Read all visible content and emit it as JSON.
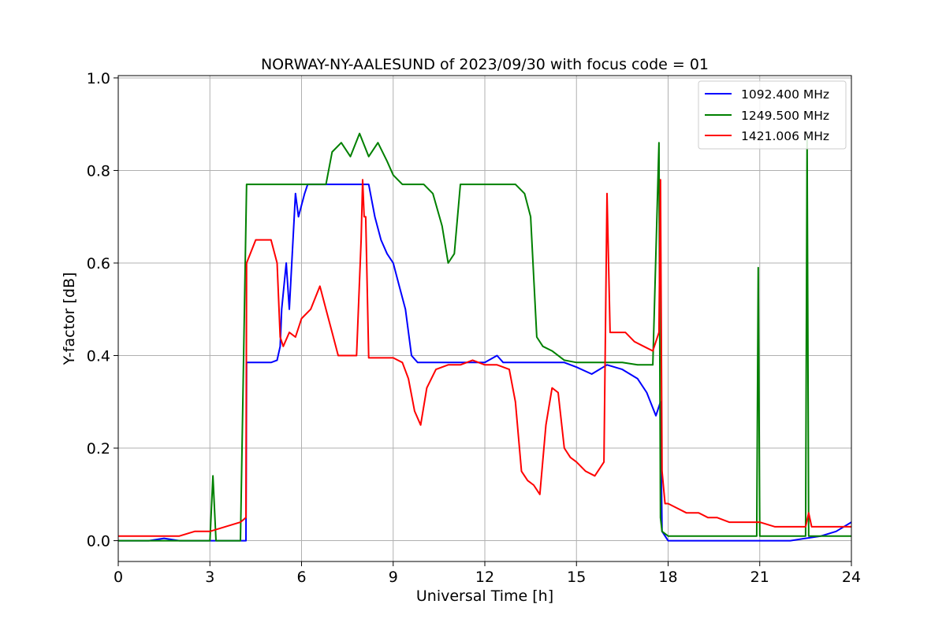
{
  "chart_data": {
    "type": "line",
    "title": "NORWAY-NY-AALESUND of 2023/09/30 with focus code = 01",
    "xlabel": "Universal Time [h]",
    "ylabel": "Y-factor [dB]",
    "xlim": [
      0,
      24
    ],
    "ylim": [
      -0.045,
      1.005
    ],
    "xticks": [
      "0",
      "3",
      "6",
      "9",
      "12",
      "15",
      "18",
      "21",
      "24"
    ],
    "yticks": [
      "0.0",
      "0.2",
      "0.4",
      "0.6",
      "0.8",
      "1.0"
    ],
    "grid": true,
    "legend_position": "top-right",
    "series": [
      {
        "name": "1092.400 MHz",
        "color": "#0000ff",
        "x": [
          0,
          1,
          1.5,
          2,
          3,
          4,
          4.18,
          4.2,
          4.22,
          5,
          5.2,
          5.3,
          5.35,
          5.5,
          5.6,
          5.8,
          5.9,
          6.1,
          6.2,
          6.5,
          7,
          7.5,
          8,
          8.2,
          8.4,
          8.6,
          8.8,
          9,
          9.2,
          9.4,
          9.6,
          9.8,
          10,
          11,
          12,
          12.4,
          12.6,
          13,
          14,
          14.6,
          15,
          15.5,
          16,
          16.5,
          17,
          17.3,
          17.6,
          17.75,
          17.8,
          18,
          19,
          20,
          21,
          22,
          23,
          23.5,
          24
        ],
        "y": [
          0,
          0,
          0.005,
          0,
          0,
          0,
          0,
          0.385,
          0.385,
          0.385,
          0.39,
          0.42,
          0.5,
          0.6,
          0.5,
          0.75,
          0.7,
          0.75,
          0.77,
          0.77,
          0.77,
          0.77,
          0.77,
          0.77,
          0.7,
          0.65,
          0.62,
          0.6,
          0.55,
          0.5,
          0.4,
          0.385,
          0.385,
          0.385,
          0.385,
          0.4,
          0.385,
          0.385,
          0.385,
          0.385,
          0.375,
          0.36,
          0.38,
          0.37,
          0.35,
          0.32,
          0.27,
          0.3,
          0.02,
          0,
          0,
          0,
          0,
          0,
          0.01,
          0.02,
          0.04
        ]
      },
      {
        "name": "1249.500 MHz",
        "color": "#008000",
        "x": [
          0,
          2,
          3,
          3.1,
          3.2,
          4,
          4.2,
          4.3,
          5,
          6,
          6.5,
          6.8,
          7,
          7.3,
          7.6,
          7.9,
          8.2,
          8.5,
          8.8,
          9,
          9.3,
          9.6,
          10,
          10.3,
          10.6,
          10.8,
          11,
          11.2,
          11.5,
          12,
          12.5,
          13,
          13.3,
          13.5,
          13.7,
          13.9,
          14.2,
          14.6,
          15,
          15.5,
          16,
          16.5,
          17,
          17.5,
          17.7,
          17.75,
          17.8,
          18,
          19,
          20,
          20.9,
          20.95,
          21,
          21.1,
          22,
          22.5,
          22.55,
          22.6,
          22.7,
          23,
          24
        ],
        "y": [
          0,
          0,
          0,
          0.14,
          0,
          0,
          0.77,
          0.77,
          0.77,
          0.77,
          0.77,
          0.77,
          0.84,
          0.86,
          0.83,
          0.88,
          0.83,
          0.86,
          0.82,
          0.79,
          0.77,
          0.77,
          0.77,
          0.75,
          0.68,
          0.6,
          0.62,
          0.77,
          0.77,
          0.77,
          0.77,
          0.77,
          0.75,
          0.7,
          0.44,
          0.42,
          0.41,
          0.39,
          0.385,
          0.385,
          0.385,
          0.385,
          0.38,
          0.38,
          0.86,
          0.05,
          0.02,
          0.01,
          0.01,
          0.01,
          0.01,
          0.59,
          0.01,
          0.01,
          0.01,
          0.01,
          0.87,
          0.01,
          0.01,
          0.01,
          0.01
        ]
      },
      {
        "name": "1421.006 MHz",
        "color": "#ff0000",
        "x": [
          0,
          1,
          1.5,
          2,
          2.5,
          3,
          3.5,
          4,
          4.18,
          4.2,
          4.5,
          5,
          5.2,
          5.3,
          5.4,
          5.6,
          5.8,
          6,
          6.3,
          6.6,
          6.8,
          7,
          7.2,
          7.5,
          7.8,
          7.95,
          8,
          8.05,
          8.1,
          8.2,
          8.5,
          9,
          9.3,
          9.5,
          9.7,
          9.9,
          10.1,
          10.4,
          10.8,
          11.2,
          11.6,
          12,
          12.4,
          12.8,
          13,
          13.2,
          13.4,
          13.6,
          13.8,
          14,
          14.2,
          14.4,
          14.6,
          14.8,
          15,
          15.3,
          15.6,
          15.9,
          16,
          16.1,
          16.3,
          16.6,
          16.9,
          17.2,
          17.5,
          17.7,
          17.75,
          17.8,
          17.9,
          18,
          18.3,
          18.6,
          19,
          19.3,
          19.6,
          20,
          20.5,
          21,
          21.5,
          22,
          22.5,
          22.6,
          22.7,
          23,
          23.5,
          24
        ],
        "y": [
          0.01,
          0.01,
          0.01,
          0.01,
          0.02,
          0.02,
          0.03,
          0.04,
          0.05,
          0.6,
          0.65,
          0.65,
          0.6,
          0.44,
          0.42,
          0.45,
          0.44,
          0.48,
          0.5,
          0.55,
          0.5,
          0.45,
          0.4,
          0.4,
          0.4,
          0.65,
          0.78,
          0.7,
          0.7,
          0.395,
          0.395,
          0.395,
          0.385,
          0.35,
          0.28,
          0.25,
          0.33,
          0.37,
          0.38,
          0.38,
          0.39,
          0.38,
          0.38,
          0.37,
          0.3,
          0.15,
          0.13,
          0.12,
          0.1,
          0.25,
          0.33,
          0.32,
          0.2,
          0.18,
          0.17,
          0.15,
          0.14,
          0.17,
          0.75,
          0.45,
          0.45,
          0.45,
          0.43,
          0.42,
          0.41,
          0.45,
          0.78,
          0.15,
          0.08,
          0.08,
          0.07,
          0.06,
          0.06,
          0.05,
          0.05,
          0.04,
          0.04,
          0.04,
          0.03,
          0.03,
          0.03,
          0.06,
          0.03,
          0.03,
          0.03,
          0.03
        ]
      }
    ]
  }
}
